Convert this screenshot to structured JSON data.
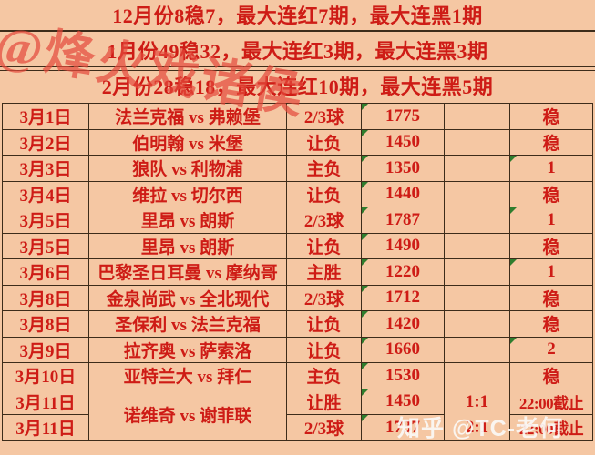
{
  "colors": {
    "background": "#f5c7a3",
    "text_red": "#ce1c16",
    "border_dark": "#3d2c1a",
    "marker_green": "#2f7d2e",
    "watermark_red": "#e4483a",
    "watermark_white": "#faf8f6"
  },
  "watermarks": {
    "top_left": "@烽火戏诸侯",
    "bottom_right": "知乎 @TC-老何"
  },
  "header": {
    "rows": [
      "12月份8稳7，最大连红7期，最大连黑1期",
      "1月份49稳32，最大连红3期，最大连黑3期",
      "2月份28稳18，最大连红10期，最大连黑5期"
    ]
  },
  "table": {
    "rows": [
      {
        "date": "3月1日",
        "match": "法兰克福 vs 弗赖堡",
        "bet": "2/3球",
        "odds": "1775",
        "score": "",
        "result": "稳",
        "odds_marker": true,
        "result_marker": false
      },
      {
        "date": "3月2日",
        "match": "伯明翰 vs 米堡",
        "bet": "让负",
        "odds": "1450",
        "score": "",
        "result": "稳",
        "odds_marker": true,
        "result_marker": false
      },
      {
        "date": "3月3日",
        "match": "狼队 vs 利物浦",
        "bet": "主负",
        "odds": "1350",
        "score": "",
        "result": "1",
        "odds_marker": true,
        "result_marker": true
      },
      {
        "date": "3月4日",
        "match": "维拉 vs 切尔西",
        "bet": "让负",
        "odds": "1440",
        "score": "",
        "result": "稳",
        "odds_marker": true,
        "result_marker": false
      },
      {
        "date": "3月5日",
        "match": "里昂 vs 朗斯",
        "bet": "2/3球",
        "odds": "1787",
        "score": "",
        "result": "1",
        "odds_marker": true,
        "result_marker": true
      },
      {
        "date": "3月5日",
        "match": "里昂 vs 朗斯",
        "bet": "让负",
        "odds": "1490",
        "score": "",
        "result": "稳",
        "odds_marker": true,
        "result_marker": false
      },
      {
        "date": "3月6日",
        "match": "巴黎圣日耳曼 vs 摩纳哥",
        "bet": "主胜",
        "odds": "1220",
        "score": "",
        "result": "1",
        "odds_marker": true,
        "result_marker": true
      },
      {
        "date": "3月8日",
        "match": "金泉尚武 vs 全北现代",
        "bet": "2/3球",
        "odds": "1712",
        "score": "",
        "result": "稳",
        "odds_marker": true,
        "result_marker": false
      },
      {
        "date": "3月8日",
        "match": "圣保利 vs 法兰克福",
        "bet": "让负",
        "odds": "1420",
        "score": "",
        "result": "稳",
        "odds_marker": true,
        "result_marker": false
      },
      {
        "date": "3月9日",
        "match": "拉齐奥 vs 萨索洛",
        "bet": "让负",
        "odds": "1660",
        "score": "",
        "result": "2",
        "odds_marker": true,
        "result_marker": true
      },
      {
        "date": "3月10日",
        "match": "亚特兰大 vs 拜仁",
        "bet": "主负",
        "odds": "1530",
        "score": "",
        "result": "稳",
        "odds_marker": true,
        "result_marker": false
      },
      {
        "date": "3月11日",
        "match": "诺维奇 vs 谢菲联",
        "bet": "让胜",
        "odds": "1450",
        "score": "1:1",
        "result": "22:00截止",
        "odds_marker": true,
        "result_marker": false,
        "match_rowspan": 2,
        "score_no_bottom_border": true
      },
      {
        "date": "3月11日",
        "match": null,
        "bet": "2/3球",
        "odds": "1737",
        "score": "2:1",
        "result": "22:00截止",
        "odds_marker": true,
        "result_marker": false
      }
    ]
  }
}
